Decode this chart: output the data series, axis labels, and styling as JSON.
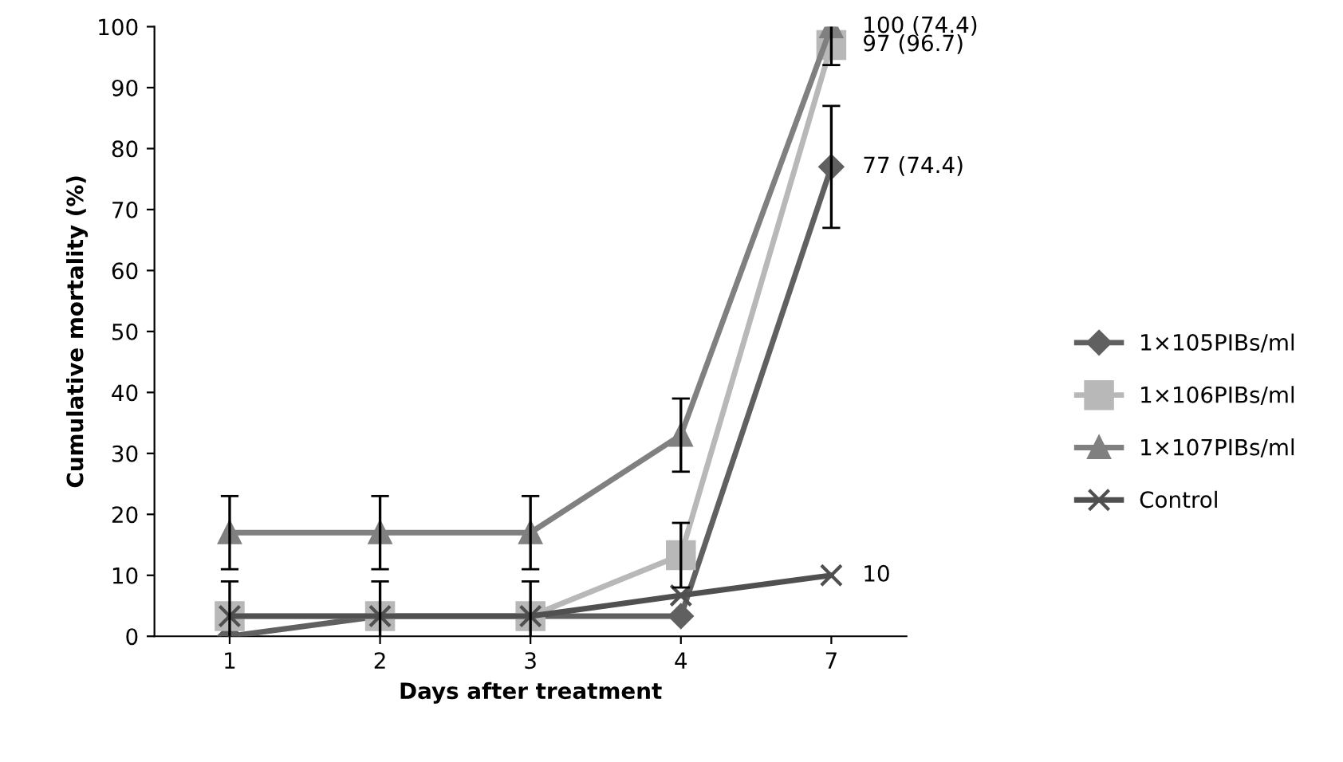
{
  "chart_data": {
    "type": "line",
    "xlabel": "Days after treatment",
    "ylabel": "Cumulative mortality (%)",
    "categories": [
      "1",
      "2",
      "3",
      "4",
      "7"
    ],
    "series": [
      {
        "name": "1×105PIBs/ml",
        "color": "#606060",
        "marker": "diamond",
        "values": [
          0,
          3.3,
          3.3,
          3.3,
          77
        ],
        "errors": [
          null,
          null,
          null,
          null,
          10
        ]
      },
      {
        "name": "1×106PIBs/ml",
        "color": "#b8b8b8",
        "marker": "square",
        "values": [
          3.3,
          3.3,
          3.3,
          13.3,
          97
        ],
        "errors": [
          5.7,
          5.7,
          5.7,
          5.3,
          3.3
        ]
      },
      {
        "name": "1×107PIBs/ml",
        "color": "#808080",
        "marker": "triangle",
        "values": [
          17,
          17,
          17,
          33,
          100
        ],
        "errors": [
          6,
          6,
          6,
          6,
          null
        ]
      },
      {
        "name": "Control",
        "color": "#505050",
        "marker": "cross",
        "values": [
          3.3,
          3.3,
          3.3,
          6.7,
          10
        ]
      }
    ],
    "ylim": [
      0,
      100
    ],
    "yticks": [
      0,
      10,
      20,
      30,
      40,
      50,
      60,
      70,
      80,
      90,
      100
    ],
    "grid": false,
    "legend": "right",
    "line_style": "solid",
    "annotations": [
      {
        "text": "100 (74.4)",
        "x": "7",
        "y": 100
      },
      {
        "text": "97 (96.7)",
        "x": "7",
        "y": 97
      },
      {
        "text": "77 (74.4)",
        "x": "7",
        "y": 77
      },
      {
        "text": "10",
        "x": "7",
        "y": 10
      }
    ]
  }
}
